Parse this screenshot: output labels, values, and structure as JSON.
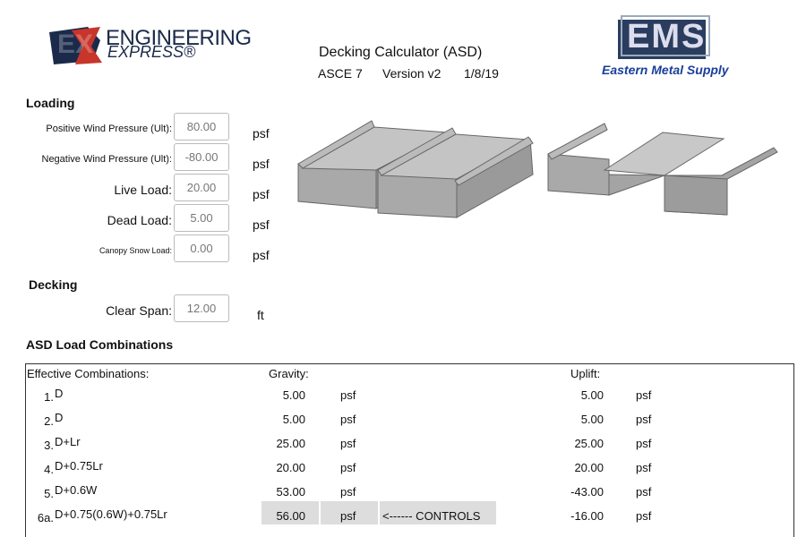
{
  "header": {
    "logo_left": {
      "mark": "EX",
      "line1": "ENGINEERING",
      "line2": "EXPRESS®"
    },
    "title": "Decking Calculator (ASD)",
    "subtitle": [
      "ASCE 7",
      "Version v2",
      "1/8/19"
    ],
    "logo_right": {
      "mark": "EMS",
      "name": "Eastern Metal Supply"
    }
  },
  "loading": {
    "heading": "Loading",
    "fields": [
      {
        "label": "Positive Wind Pressure (Ult):",
        "value": "80.00",
        "unit": "psf"
      },
      {
        "label": "Negative Wind Pressure (Ult):",
        "value": "-80.00",
        "unit": "psf"
      },
      {
        "label": "Live Load:",
        "value": "20.00",
        "unit": "psf"
      },
      {
        "label": "Dead Load:",
        "value": "5.00",
        "unit": "psf"
      },
      {
        "label": "Canopy Snow Load:",
        "value": "0.00",
        "unit": "psf"
      }
    ]
  },
  "decking": {
    "heading": "Decking",
    "fields": [
      {
        "label": "Clear Span:",
        "value": "12.00",
        "unit": "ft"
      }
    ]
  },
  "combinations": {
    "heading": "ASD Load Combinations",
    "columns": [
      "Effective Combinations:",
      "Gravity:",
      "Uplift:"
    ],
    "rows": [
      {
        "number": "1.",
        "formula": "D",
        "gravity": "5.00",
        "gravity_unit": "psf",
        "uplift": "5.00",
        "uplift_unit": "psf"
      },
      {
        "number": "2.",
        "formula": "D",
        "gravity": "5.00",
        "gravity_unit": "psf",
        "uplift": "5.00",
        "uplift_unit": "psf"
      },
      {
        "number": "3.",
        "formula": "D+Lr",
        "gravity": "25.00",
        "gravity_unit": "psf",
        "uplift": "25.00",
        "uplift_unit": "psf"
      },
      {
        "number": "4.",
        "formula": "D+0.75Lr",
        "gravity": "20.00",
        "gravity_unit": "psf",
        "uplift": "20.00",
        "uplift_unit": "psf"
      },
      {
        "number": "5.",
        "formula": "D+0.6W",
        "gravity": "53.00",
        "gravity_unit": "psf",
        "uplift": "-43.00",
        "uplift_unit": "psf"
      },
      {
        "number": "6a.",
        "formula": "D+0.75(0.6W)+0.75Lr",
        "gravity": "56.00",
        "gravity_unit": "psf",
        "note": "<------ CONTROLS",
        "uplift": "-16.00",
        "uplift_unit": "psf"
      }
    ]
  }
}
